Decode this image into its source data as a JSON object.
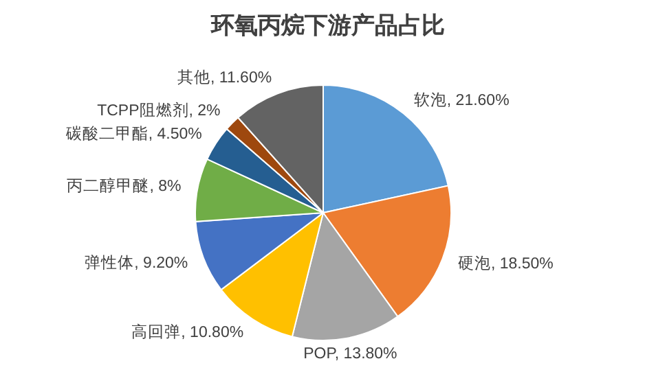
{
  "chart_data": {
    "type": "pie",
    "title": "环氧丙烷下游产品占比",
    "categories": [
      "软泡",
      "硬泡",
      "POP",
      "高回弹",
      "弹性体",
      "丙二醇甲醚",
      "碳酸二甲酯",
      "TCPP阻燃剂",
      "其他"
    ],
    "values": [
      21.6,
      18.5,
      13.8,
      10.8,
      9.2,
      8,
      4.5,
      2,
      11.6
    ],
    "value_labels": [
      "21.60%",
      "18.50%",
      "13.80%",
      "10.80%",
      "9.20%",
      "8%",
      "4.50%",
      "2%",
      "11.60%"
    ],
    "colors": [
      "#5b9bd5",
      "#ed7d31",
      "#a5a5a5",
      "#ffc000",
      "#4472c4",
      "#70ad47",
      "#255e91",
      "#9e480e",
      "#636363"
    ]
  }
}
